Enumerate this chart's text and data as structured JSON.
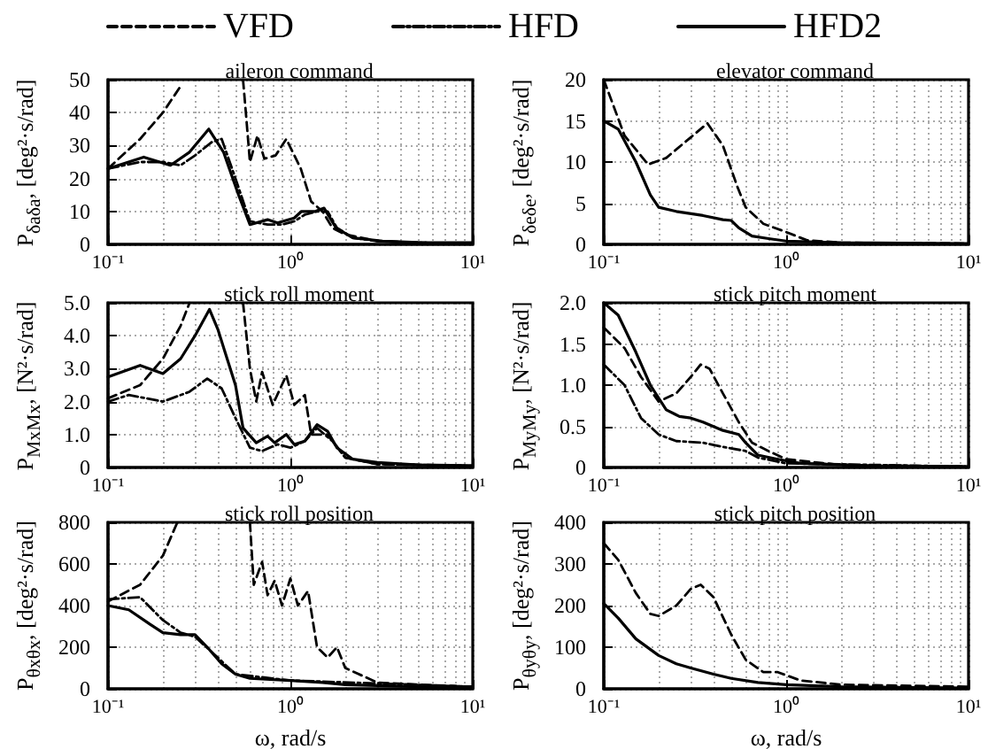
{
  "chart_data": [
    {
      "type": "line",
      "title": "aileron command",
      "ylabel": "P$_{δaδa}$, [deg²·s/rad]",
      "log": "x",
      "grid": true,
      "legend": "top",
      "xlim": [
        0.1,
        10
      ],
      "xticks": [
        {
          "value": 0.1,
          "label": "10⁻¹"
        },
        {
          "value": 1,
          "label": "10⁰"
        },
        {
          "value": 10,
          "label": "10¹"
        }
      ],
      "ylim": [
        0,
        50
      ],
      "yticks": [
        0,
        10,
        20,
        30,
        40,
        50
      ],
      "series": [
        {
          "name": "VFD",
          "color": "#000000",
          "line_style": "dashed",
          "x": [
            0.1,
            0.15,
            0.2,
            0.25,
            0.3,
            0.55,
            0.57,
            0.6,
            0.66,
            0.72,
            0.83,
            0.95,
            1.14,
            1.3,
            1.5,
            1.7,
            2,
            3,
            5,
            10
          ],
          "values": [
            23,
            32,
            40,
            48,
            null,
            50,
            40,
            25,
            33,
            26,
            27,
            32,
            23,
            13,
            10,
            5,
            3,
            1,
            0.5,
            0.3
          ]
        },
        {
          "name": "HFD",
          "color": "#000000",
          "line_style": "dashdot",
          "x": [
            0.1,
            0.15,
            0.2,
            0.25,
            0.3,
            0.37,
            0.42,
            0.5,
            0.6,
            0.75,
            0.9,
            1.05,
            1.2,
            1.4,
            1.6,
            1.8,
            2.2,
            3,
            5,
            10
          ],
          "values": [
            23,
            25,
            25,
            24,
            27,
            31,
            32,
            20,
            7,
            6,
            6,
            7,
            9,
            10,
            10,
            5,
            2,
            1,
            0.5,
            0.3
          ]
        },
        {
          "name": "HFD2",
          "color": "#000000",
          "line_style": "solid",
          "x": [
            0.1,
            0.157,
            0.22,
            0.28,
            0.357,
            0.43,
            0.52,
            0.6,
            0.75,
            0.85,
            1.05,
            1.15,
            1.37,
            1.53,
            1.78,
            2.2,
            3.2,
            5,
            10
          ],
          "values": [
            23,
            26.5,
            24,
            28,
            35,
            28,
            15,
            6,
            7.5,
            6.5,
            8,
            10,
            10,
            11,
            5,
            2,
            1,
            0.6,
            0.5
          ]
        }
      ]
    },
    {
      "type": "line",
      "title": "elevator command",
      "ylabel": "P$_{δeδe}$, [deg²·s/rad]",
      "log": "x",
      "grid": true,
      "xlim": [
        0.1,
        10
      ],
      "xticks": [
        {
          "value": 0.1,
          "label": "10⁻¹"
        },
        {
          "value": 1,
          "label": "10⁰"
        },
        {
          "value": 10,
          "label": "10¹"
        }
      ],
      "ylim": [
        0,
        20
      ],
      "yticks": [
        0,
        5,
        10,
        15,
        20
      ],
      "series": [
        {
          "color": "#000000",
          "line_style": "dashed",
          "x": [
            0.1,
            0.13,
            0.175,
            0.22,
            0.3,
            0.37,
            0.45,
            0.54,
            0.6,
            0.75,
            1,
            1.3,
            2,
            10
          ],
          "values": [
            20,
            13.2,
            9.7,
            10.5,
            13,
            14.7,
            12,
            7,
            4.5,
            2.5,
            1.5,
            0.5,
            0.2,
            0.1
          ]
        },
        {
          "color": "#000000",
          "line_style": "solid",
          "x": [
            0.1,
            0.12,
            0.15,
            0.18,
            0.2,
            0.25,
            0.35,
            0.45,
            0.5,
            0.55,
            0.65,
            0.8,
            1,
            2,
            10
          ],
          "values": [
            15,
            14,
            10,
            6,
            4.5,
            4,
            3.5,
            3,
            2.9,
            2,
            1,
            0.7,
            0.4,
            0.2,
            0.1
          ]
        }
      ]
    },
    {
      "type": "line",
      "title": "stick roll moment",
      "ylabel": "P$_{MxMx}$, [N²·s/rad]",
      "log": "x",
      "grid": true,
      "xlim": [
        0.1,
        10
      ],
      "xticks": [
        {
          "value": 0.1,
          "label": "10⁻¹"
        },
        {
          "value": 1,
          "label": "10⁰"
        },
        {
          "value": 10,
          "label": "10¹"
        }
      ],
      "ylim": [
        0,
        5
      ],
      "yticks": [
        0,
        {
          "value": 1,
          "label": "1.0"
        },
        {
          "value": 2,
          "label": "2.0"
        },
        {
          "value": 3,
          "label": "3.0"
        },
        {
          "value": 4,
          "label": "4.0"
        },
        {
          "value": 5,
          "label": "5.0"
        }
      ],
      "series": [
        {
          "color": "#000000",
          "line_style": "dashed",
          "x": [
            0.1,
            0.15,
            0.2,
            0.25,
            0.28,
            0.4,
            0.55,
            0.6,
            0.65,
            0.7,
            0.8,
            0.95,
            1.05,
            1.2,
            1.3,
            1.6,
            2,
            3,
            10
          ],
          "values": [
            2.1,
            2.5,
            3.3,
            4.3,
            5,
            null,
            5,
            3,
            2,
            2.9,
            1.9,
            2.8,
            1.9,
            2.2,
            1,
            1,
            0.3,
            0.1,
            0.05
          ]
        },
        {
          "color": "#000000",
          "line_style": "dashdot",
          "x": [
            0.1,
            0.13,
            0.2,
            0.28,
            0.35,
            0.42,
            0.5,
            0.6,
            0.7,
            0.85,
            1,
            1.2,
            1.4,
            1.7,
            2,
            3,
            10
          ],
          "values": [
            2,
            2.2,
            2,
            2.3,
            2.7,
            2.4,
            1.5,
            0.6,
            0.5,
            0.7,
            0.6,
            0.8,
            1.2,
            0.8,
            0.3,
            0.1,
            0.05
          ]
        },
        {
          "color": "#000000",
          "line_style": "solid",
          "x": [
            0.1,
            0.15,
            0.2,
            0.25,
            0.3,
            0.36,
            0.4,
            0.45,
            0.5,
            0.55,
            0.65,
            0.75,
            0.82,
            0.95,
            1.05,
            1.2,
            1.4,
            1.6,
            1.8,
            2.2,
            3,
            5,
            10
          ],
          "values": [
            2.75,
            3.1,
            2.85,
            3.3,
            4,
            4.8,
            4.2,
            3.3,
            2.5,
            1.2,
            0.75,
            0.95,
            0.75,
            1,
            0.7,
            0.8,
            1.3,
            1.1,
            0.6,
            0.25,
            0.15,
            0.08,
            0.05
          ]
        }
      ]
    },
    {
      "type": "line",
      "title": "stick pitch moment",
      "ylabel": "P$_{MyMy}$, [N²·s/rad]",
      "log": "x",
      "grid": true,
      "xlim": [
        0.1,
        10
      ],
      "xticks": [
        {
          "value": 0.1,
          "label": "10⁻¹"
        },
        {
          "value": 1,
          "label": "10⁰"
        },
        {
          "value": 10,
          "label": "10¹"
        }
      ],
      "ylim": [
        0,
        2
      ],
      "yticks": [
        0,
        0.5,
        {
          "value": 1,
          "label": "1.0"
        },
        1.5,
        {
          "value": 2,
          "label": "2.0"
        }
      ],
      "series": [
        {
          "color": "#000000",
          "line_style": "dashed",
          "x": [
            0.1,
            0.13,
            0.16,
            0.2,
            0.25,
            0.3,
            0.34,
            0.38,
            0.45,
            0.55,
            0.65,
            0.8,
            1,
            2,
            10
          ],
          "values": [
            1.7,
            1.45,
            1.1,
            0.8,
            0.9,
            1.1,
            1.25,
            1.2,
            0.9,
            0.55,
            0.3,
            0.2,
            0.1,
            0.03,
            0.01
          ]
        },
        {
          "color": "#000000",
          "line_style": "dashdot",
          "x": [
            0.1,
            0.13,
            0.16,
            0.2,
            0.25,
            0.35,
            0.45,
            0.6,
            0.7,
            1,
            10
          ],
          "values": [
            1.25,
            1,
            0.6,
            0.4,
            0.32,
            0.3,
            0.25,
            0.2,
            0.12,
            0.05,
            0.01
          ]
        },
        {
          "color": "#000000",
          "line_style": "solid",
          "x": [
            0.1,
            0.12,
            0.15,
            0.18,
            0.22,
            0.26,
            0.3,
            0.35,
            0.45,
            0.55,
            0.6,
            0.7,
            0.9,
            1.2,
            3,
            10
          ],
          "values": [
            2,
            1.85,
            1.4,
            1,
            0.7,
            0.62,
            0.6,
            0.55,
            0.45,
            0.4,
            0.3,
            0.15,
            0.1,
            0.05,
            0.02,
            0.01
          ]
        }
      ]
    },
    {
      "type": "line",
      "title": "stick roll position",
      "ylabel": "P$_{θxθx}$, [deg²·s/rad]",
      "xlabel": "ω, rad/s",
      "log": "x",
      "grid": true,
      "xlim": [
        0.1,
        10
      ],
      "xticks": [
        {
          "value": 0.1,
          "label": "10⁻¹"
        },
        {
          "value": 1,
          "label": "10⁰"
        },
        {
          "value": 10,
          "label": "10¹"
        }
      ],
      "ylim": [
        0,
        800
      ],
      "yticks": [
        0,
        200,
        400,
        600,
        800
      ],
      "series": [
        {
          "color": "#000000",
          "line_style": "dashed",
          "x": [
            0.1,
            0.15,
            0.2,
            0.24,
            0.4,
            0.6,
            0.63,
            0.7,
            0.75,
            0.82,
            0.9,
            1,
            1.1,
            1.25,
            1.4,
            1.6,
            1.8,
            2,
            3,
            5,
            10
          ],
          "values": [
            420,
            500,
            640,
            800,
            null,
            800,
            500,
            610,
            450,
            520,
            400,
            530,
            400,
            470,
            200,
            150,
            200,
            100,
            30,
            20,
            10
          ]
        },
        {
          "color": "#000000",
          "line_style": "dashdot",
          "x": [
            0.1,
            0.15,
            0.2,
            0.25,
            0.3,
            0.4,
            0.5,
            1,
            10
          ],
          "values": [
            430,
            440,
            330,
            270,
            250,
            150,
            70,
            40,
            10
          ]
        },
        {
          "color": "#000000",
          "line_style": "solid",
          "x": [
            0.1,
            0.13,
            0.17,
            0.2,
            0.25,
            0.3,
            0.35,
            0.42,
            0.5,
            0.6,
            1,
            1.5,
            2,
            5,
            10
          ],
          "values": [
            400,
            380,
            310,
            270,
            260,
            260,
            200,
            120,
            70,
            50,
            40,
            30,
            20,
            10,
            10
          ]
        }
      ]
    },
    {
      "type": "line",
      "title": "stick pitch position",
      "ylabel": "P$_{θyθy}$, [deg²·s/rad]",
      "xlabel": "ω, rad/s",
      "log": "x",
      "grid": true,
      "xlim": [
        0.1,
        10
      ],
      "xticks": [
        {
          "value": 0.1,
          "label": "10⁻¹"
        },
        {
          "value": 1,
          "label": "10⁰"
        },
        {
          "value": 10,
          "label": "10¹"
        }
      ],
      "ylim": [
        0,
        400
      ],
      "yticks": [
        0,
        100,
        200,
        300,
        400
      ],
      "series": [
        {
          "color": "#000000",
          "line_style": "dashed",
          "x": [
            0.1,
            0.12,
            0.15,
            0.18,
            0.2,
            0.25,
            0.3,
            0.34,
            0.4,
            0.5,
            0.6,
            0.75,
            0.9,
            1.2,
            2,
            10
          ],
          "values": [
            350,
            310,
            230,
            180,
            175,
            200,
            240,
            250,
            220,
            130,
            70,
            40,
            40,
            20,
            10,
            5
          ]
        },
        {
          "color": "#000000",
          "line_style": "solid",
          "x": [
            0.1,
            0.12,
            0.15,
            0.2,
            0.25,
            0.3,
            0.4,
            0.5,
            0.7,
            1,
            2,
            10
          ],
          "values": [
            205,
            170,
            120,
            80,
            60,
            50,
            35,
            25,
            15,
            10,
            5,
            2
          ]
        }
      ]
    }
  ]
}
